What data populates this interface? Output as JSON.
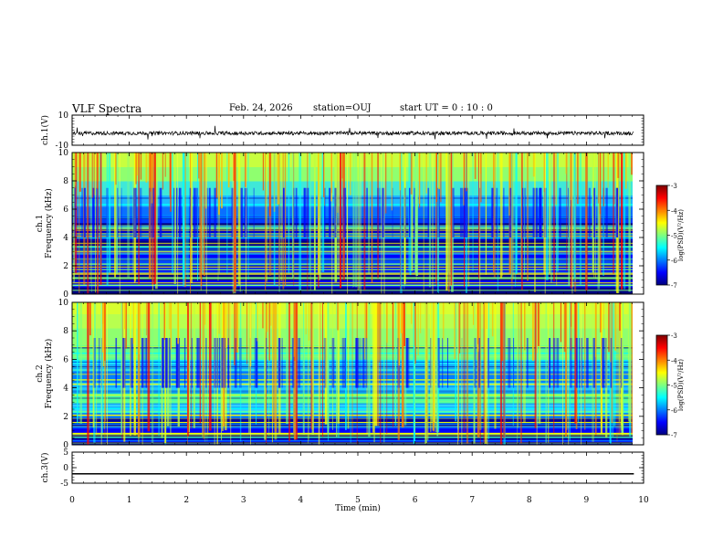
{
  "header": {
    "title": "VLF Spectra",
    "date": "Feb. 24, 2026",
    "station": "station=OUJ",
    "start": "start  UT =   0 : 10 : 0"
  },
  "chart_data": [
    {
      "type": "line",
      "panel": "ch1-waveform",
      "ylabel": "ch.1(V)",
      "ylim": [
        -10,
        10
      ],
      "yticks": [
        "10",
        "-10"
      ],
      "baseline": -2,
      "description_values": {
        "noise_band": [
          -3.5,
          -0.5
        ]
      }
    },
    {
      "type": "heatmap",
      "panel": "ch1-spectrogram",
      "ylabel": "ch.1\nFrequency (kHz)",
      "ylim": [
        0,
        10
      ],
      "yticks": [
        "0",
        "2",
        "4",
        "6",
        "8",
        "10"
      ],
      "colorbar": {
        "label": "log(PSD)(V²/Hz)",
        "range": [
          -7,
          -3
        ],
        "ticks": [
          "-3",
          "-4",
          "-5",
          "-6",
          "-7"
        ]
      }
    },
    {
      "type": "heatmap",
      "panel": "ch2-spectrogram",
      "ylabel": "ch.2\nFrequency (kHz)",
      "ylim": [
        0,
        10
      ],
      "yticks": [
        "0",
        "2",
        "4",
        "6",
        "8",
        "10"
      ],
      "colorbar": {
        "label": "log(PSD)(V²/Hz)",
        "range": [
          -7,
          -3
        ],
        "ticks": [
          "-3",
          "-4",
          "-5",
          "-6",
          "-7"
        ]
      }
    },
    {
      "type": "line",
      "panel": "ch3-waveform",
      "ylabel": "ch.3(V)",
      "ylim": [
        -5,
        5
      ],
      "yticks": [
        "5",
        "0",
        "-5"
      ],
      "baseline": -2
    }
  ],
  "xaxis": {
    "label": "Time (min)",
    "xlim": [
      0,
      10
    ],
    "ticks": [
      "0",
      "1",
      "2",
      "3",
      "4",
      "5",
      "6",
      "7",
      "8",
      "9",
      "10"
    ],
    "data_end": 9.83
  },
  "colors": {
    "jet": [
      "#00007f",
      "#0000ff",
      "#007fff",
      "#00ffff",
      "#7fff7f",
      "#ffff00",
      "#ff7f00",
      "#ff0000",
      "#7f0000"
    ]
  }
}
